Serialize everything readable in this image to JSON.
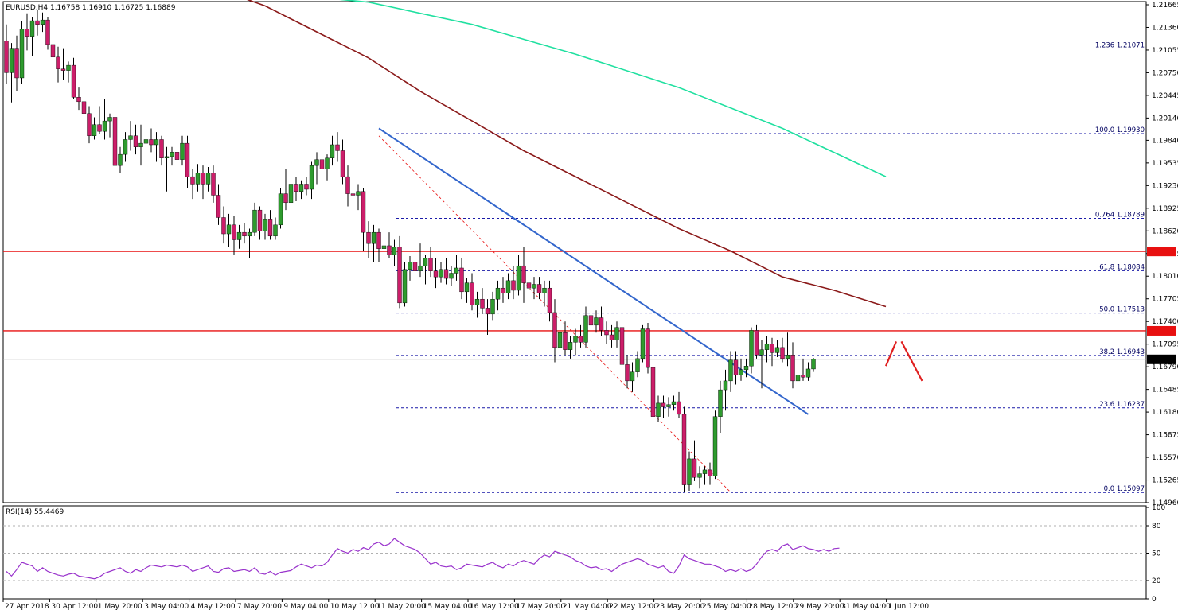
{
  "header": {
    "symbol_info": "EURUSD,H4  1.16758 1.16910 1.16725 1.16889",
    "rsi_info": "RSI(14) 55.4469"
  },
  "price_axis": {
    "labels": [
      "1.21665",
      "1.21360",
      "1.21055",
      "1.20750",
      "1.20445",
      "1.20140",
      "1.19840",
      "1.19535",
      "1.19230",
      "1.18925",
      "1.18620",
      "1.18315",
      "1.18010",
      "1.17705",
      "1.17400",
      "1.17095",
      "1.16790",
      "1.16485",
      "1.16180",
      "1.15875",
      "1.15570",
      "1.15265",
      "1.14960"
    ],
    "current_price": "1.16889",
    "levels": {
      "upper_resistance": "1.18343",
      "lower_resistance": "1.17274"
    }
  },
  "rsi_axis": {
    "labels": [
      "100",
      "80",
      "50",
      "20",
      "0"
    ]
  },
  "time_axis": {
    "labels": [
      "27 Apr 2018",
      "30 Apr 12:00",
      "1 May 20:00",
      "3 May 04:00",
      "4 May 12:00",
      "7 May 20:00",
      "9 May 04:00",
      "10 May 12:00",
      "11 May 20:00",
      "15 May 04:00",
      "16 May 12:00",
      "17 May 20:00",
      "21 May 04:00",
      "22 May 12:00",
      "23 May 20:00",
      "25 May 04:00",
      "28 May 12:00",
      "29 May 20:00",
      "31 May 04:00",
      "1 Jun 12:00"
    ]
  },
  "fib_labels": [
    "1.236 1.21071",
    "100.0 1.19930",
    "0.764 1.18789",
    "61.8 1.18084",
    "50.0 1.17513",
    "38.2 1.16943",
    "23.6 1.16237",
    "0.0 1.15097"
  ],
  "colors": {
    "bull": "#2e9b2e",
    "bear": "#cc1e6a",
    "wick": "#000000",
    "sma_slow": "#20e0a0",
    "sma_mid": "#8b1a1a",
    "trendline": "#3366cc",
    "hline": "#e81010",
    "fib": "#1a1aa8",
    "rsi_line": "#9933cc",
    "projection": "#e02020"
  },
  "chart_data": {
    "type": "candlestick",
    "symbol": "EURUSD",
    "timeframe": "H4",
    "ylim": [
      1.1496,
      1.2166
    ],
    "candles": [
      [
        1.2118,
        1.214,
        1.206,
        1.2075
      ],
      [
        1.2075,
        1.2115,
        1.2035,
        1.2108
      ],
      [
        1.2108,
        1.2125,
        1.205,
        1.2068
      ],
      [
        1.2068,
        1.2145,
        1.206,
        1.2134
      ],
      [
        1.2134,
        1.2155,
        1.2105,
        1.2124
      ],
      [
        1.2124,
        1.215,
        1.2098,
        1.2145
      ],
      [
        1.2145,
        1.216,
        1.2125,
        1.214
      ],
      [
        1.214,
        1.2156,
        1.213,
        1.2146
      ],
      [
        1.2146,
        1.215,
        1.2106,
        1.2113
      ],
      [
        1.2113,
        1.2122,
        1.2078,
        1.2096
      ],
      [
        1.2096,
        1.211,
        1.2062,
        1.208
      ],
      [
        1.208,
        1.2108,
        1.2065,
        1.2078
      ],
      [
        1.2078,
        1.209,
        1.2062,
        1.2085
      ],
      [
        1.2085,
        1.2095,
        1.204,
        1.2042
      ],
      [
        1.2042,
        1.2055,
        1.2025,
        1.2036
      ],
      [
        1.2036,
        1.2045,
        1.2,
        1.202
      ],
      [
        1.202,
        1.203,
        1.198,
        1.199
      ],
      [
        1.199,
        1.2015,
        1.1985,
        1.2005
      ],
      [
        1.2005,
        1.203,
        1.1992,
        1.1996
      ],
      [
        1.1996,
        1.204,
        1.1985,
        1.201
      ],
      [
        1.201,
        1.202,
        1.1988,
        1.2015
      ],
      [
        1.2015,
        1.2025,
        1.1935,
        1.195
      ],
      [
        1.195,
        1.1975,
        1.194,
        1.1965
      ],
      [
        1.1965,
        1.1995,
        1.1955,
        1.1985
      ],
      [
        1.1985,
        1.201,
        1.197,
        1.199
      ],
      [
        1.199,
        1.2005,
        1.1965,
        1.1975
      ],
      [
        1.1975,
        1.2005,
        1.195,
        1.198
      ],
      [
        1.198,
        1.1995,
        1.197,
        1.1985
      ],
      [
        1.1985,
        1.2,
        1.1968,
        1.1978
      ],
      [
        1.1978,
        1.1995,
        1.1955,
        1.1985
      ],
      [
        1.1985,
        1.199,
        1.195,
        1.196
      ],
      [
        1.196,
        1.1975,
        1.1915,
        1.1962
      ],
      [
        1.1962,
        1.1975,
        1.195,
        1.1968
      ],
      [
        1.1968,
        1.1985,
        1.195,
        1.1958
      ],
      [
        1.1958,
        1.199,
        1.195,
        1.198
      ],
      [
        1.198,
        1.199,
        1.192,
        1.1935
      ],
      [
        1.1935,
        1.1945,
        1.1905,
        1.1925
      ],
      [
        1.1925,
        1.1952,
        1.1915,
        1.194
      ],
      [
        1.194,
        1.195,
        1.1905,
        1.1925
      ],
      [
        1.1925,
        1.1948,
        1.1915,
        1.194
      ],
      [
        1.194,
        1.195,
        1.19,
        1.191
      ],
      [
        1.191,
        1.1925,
        1.187,
        1.188
      ],
      [
        1.188,
        1.1895,
        1.1845,
        1.1858
      ],
      [
        1.1858,
        1.1885,
        1.184,
        1.187
      ],
      [
        1.187,
        1.1882,
        1.183,
        1.185
      ],
      [
        1.185,
        1.187,
        1.1838,
        1.186
      ],
      [
        1.186,
        1.1872,
        1.1845,
        1.1855
      ],
      [
        1.1855,
        1.1865,
        1.1825,
        1.186
      ],
      [
        1.186,
        1.19,
        1.1855,
        1.189
      ],
      [
        1.189,
        1.1895,
        1.185,
        1.1862
      ],
      [
        1.1862,
        1.1885,
        1.185,
        1.1878
      ],
      [
        1.1878,
        1.189,
        1.185,
        1.1855
      ],
      [
        1.1855,
        1.188,
        1.185,
        1.187
      ],
      [
        1.187,
        1.192,
        1.1865,
        1.1912
      ],
      [
        1.1912,
        1.1945,
        1.189,
        1.19
      ],
      [
        1.19,
        1.193,
        1.1892,
        1.1925
      ],
      [
        1.1925,
        1.1935,
        1.1902,
        1.1915
      ],
      [
        1.1915,
        1.193,
        1.1905,
        1.1925
      ],
      [
        1.1925,
        1.1935,
        1.191,
        1.1918
      ],
      [
        1.1918,
        1.1955,
        1.1905,
        1.195
      ],
      [
        1.195,
        1.1968,
        1.1925,
        1.1958
      ],
      [
        1.1958,
        1.1972,
        1.1938,
        1.1945
      ],
      [
        1.1945,
        1.1965,
        1.193,
        1.196
      ],
      [
        1.196,
        1.199,
        1.195,
        1.1978
      ],
      [
        1.1978,
        1.1995,
        1.1955,
        1.197
      ],
      [
        1.197,
        1.1985,
        1.1925,
        1.1935
      ],
      [
        1.1935,
        1.195,
        1.1895,
        1.1912
      ],
      [
        1.1912,
        1.1925,
        1.189,
        1.191
      ],
      [
        1.191,
        1.1925,
        1.189,
        1.1915
      ],
      [
        1.1915,
        1.192,
        1.1835,
        1.186
      ],
      [
        1.186,
        1.1875,
        1.1825,
        1.1845
      ],
      [
        1.1845,
        1.187,
        1.182,
        1.186
      ],
      [
        1.186,
        1.1865,
        1.182,
        1.1838
      ],
      [
        1.1838,
        1.185,
        1.1815,
        1.1842
      ],
      [
        1.1842,
        1.186,
        1.1825,
        1.183
      ],
      [
        1.183,
        1.185,
        1.1815,
        1.184
      ],
      [
        1.184,
        1.1855,
        1.1758,
        1.1765
      ],
      [
        1.1765,
        1.182,
        1.176,
        1.181
      ],
      [
        1.181,
        1.1828,
        1.1795,
        1.182
      ],
      [
        1.182,
        1.1835,
        1.1795,
        1.1808
      ],
      [
        1.1808,
        1.1845,
        1.18,
        1.1815
      ],
      [
        1.1815,
        1.183,
        1.179,
        1.1825
      ],
      [
        1.1825,
        1.184,
        1.18,
        1.1808
      ],
      [
        1.1808,
        1.1825,
        1.1785,
        1.18
      ],
      [
        1.18,
        1.182,
        1.1792,
        1.181
      ],
      [
        1.181,
        1.1825,
        1.179,
        1.1798
      ],
      [
        1.1798,
        1.1815,
        1.1788,
        1.1805
      ],
      [
        1.1805,
        1.183,
        1.1795,
        1.1812
      ],
      [
        1.1812,
        1.1825,
        1.177,
        1.178
      ],
      [
        1.178,
        1.1798,
        1.1765,
        1.1792
      ],
      [
        1.1792,
        1.1805,
        1.1755,
        1.1762
      ],
      [
        1.1762,
        1.178,
        1.1745,
        1.177
      ],
      [
        1.177,
        1.1785,
        1.175,
        1.1758
      ],
      [
        1.1758,
        1.177,
        1.1722,
        1.175
      ],
      [
        1.175,
        1.178,
        1.1742,
        1.177
      ],
      [
        1.177,
        1.1795,
        1.1755,
        1.1785
      ],
      [
        1.1785,
        1.18,
        1.1765,
        1.1778
      ],
      [
        1.1778,
        1.1805,
        1.177,
        1.1795
      ],
      [
        1.1795,
        1.1815,
        1.177,
        1.1782
      ],
      [
        1.1782,
        1.183,
        1.1775,
        1.1815
      ],
      [
        1.1815,
        1.184,
        1.1765,
        1.1792
      ],
      [
        1.1792,
        1.1805,
        1.1775,
        1.1785
      ],
      [
        1.1785,
        1.18,
        1.177,
        1.179
      ],
      [
        1.179,
        1.18,
        1.177,
        1.1778
      ],
      [
        1.1778,
        1.1795,
        1.176,
        1.1785
      ],
      [
        1.1785,
        1.1795,
        1.174,
        1.1752
      ],
      [
        1.1752,
        1.177,
        1.1685,
        1.1705
      ],
      [
        1.1705,
        1.1735,
        1.169,
        1.1725
      ],
      [
        1.1725,
        1.174,
        1.1695,
        1.1702
      ],
      [
        1.1702,
        1.172,
        1.169,
        1.1712
      ],
      [
        1.1712,
        1.173,
        1.1695,
        1.172
      ],
      [
        1.172,
        1.1735,
        1.1705,
        1.1712
      ],
      [
        1.1712,
        1.176,
        1.1705,
        1.1748
      ],
      [
        1.1748,
        1.1765,
        1.172,
        1.1735
      ],
      [
        1.1735,
        1.1755,
        1.1725,
        1.1745
      ],
      [
        1.1745,
        1.176,
        1.172,
        1.1728
      ],
      [
        1.1728,
        1.174,
        1.171,
        1.1722
      ],
      [
        1.1722,
        1.1735,
        1.1705,
        1.1715
      ],
      [
        1.1715,
        1.174,
        1.1705,
        1.1732
      ],
      [
        1.1732,
        1.1745,
        1.1675,
        1.1682
      ],
      [
        1.1682,
        1.1695,
        1.165,
        1.166
      ],
      [
        1.166,
        1.1685,
        1.1645,
        1.1672
      ],
      [
        1.1672,
        1.17,
        1.1665,
        1.169
      ],
      [
        1.169,
        1.1735,
        1.1685,
        1.173
      ],
      [
        1.173,
        1.1738,
        1.167,
        1.1678
      ],
      [
        1.1678,
        1.1695,
        1.1605,
        1.1612
      ],
      [
        1.1612,
        1.164,
        1.1605,
        1.163
      ],
      [
        1.163,
        1.164,
        1.161,
        1.1625
      ],
      [
        1.1625,
        1.1638,
        1.1612,
        1.1628
      ],
      [
        1.1628,
        1.164,
        1.162,
        1.1632
      ],
      [
        1.1632,
        1.1645,
        1.161,
        1.1615
      ],
      [
        1.1615,
        1.1625,
        1.151,
        1.152
      ],
      [
        1.152,
        1.1565,
        1.1512,
        1.1555
      ],
      [
        1.1555,
        1.158,
        1.1525,
        1.153
      ],
      [
        1.153,
        1.1545,
        1.1515,
        1.1535
      ],
      [
        1.1535,
        1.1545,
        1.152,
        1.154
      ],
      [
        1.154,
        1.155,
        1.152,
        1.1532
      ],
      [
        1.1532,
        1.162,
        1.1528,
        1.1612
      ],
      [
        1.1612,
        1.166,
        1.159,
        1.1648
      ],
      [
        1.1648,
        1.1675,
        1.162,
        1.166
      ],
      [
        1.166,
        1.17,
        1.1645,
        1.1688
      ],
      [
        1.1688,
        1.17,
        1.1655,
        1.1668
      ],
      [
        1.1668,
        1.169,
        1.166,
        1.1675
      ],
      [
        1.1675,
        1.169,
        1.1665,
        1.168
      ],
      [
        1.168,
        1.1732,
        1.167,
        1.1728
      ],
      [
        1.1728,
        1.1735,
        1.169,
        1.1695
      ],
      [
        1.1695,
        1.1715,
        1.165,
        1.1702
      ],
      [
        1.1702,
        1.172,
        1.1685,
        1.171
      ],
      [
        1.171,
        1.1718,
        1.168,
        1.1698
      ],
      [
        1.1698,
        1.1715,
        1.1692,
        1.1705
      ],
      [
        1.1705,
        1.1718,
        1.1685,
        1.169
      ],
      [
        1.169,
        1.1725,
        1.168,
        1.1695
      ],
      [
        1.1695,
        1.1712,
        1.165,
        1.166
      ],
      [
        1.166,
        1.168,
        1.162,
        1.1668
      ],
      [
        1.1668,
        1.169,
        1.166,
        1.1665
      ],
      [
        1.1665,
        1.1685,
        1.166,
        1.1676
      ],
      [
        1.1676,
        1.1691,
        1.1672,
        1.1689
      ]
    ],
    "moving_averages": [
      {
        "points": [
          [
            0,
            1.2265
          ],
          [
            55,
            1.218
          ],
          [
            70,
            1.217
          ],
          [
            90,
            1.214
          ],
          [
            110,
            1.21
          ],
          [
            130,
            1.2055
          ],
          [
            150,
            1.2
          ],
          [
            170,
            1.1935
          ]
        ]
      },
      {
        "points": [
          [
            0,
            1.229
          ],
          [
            50,
            1.2165
          ],
          [
            60,
            1.213
          ],
          [
            70,
            1.2095
          ],
          [
            80,
            1.205
          ],
          [
            90,
            1.201
          ],
          [
            100,
            1.197
          ],
          [
            110,
            1.1935
          ],
          [
            120,
            1.19
          ],
          [
            130,
            1.1865
          ],
          [
            140,
            1.1835
          ],
          [
            150,
            1.18
          ],
          [
            160,
            1.1782
          ],
          [
            170,
            1.176
          ]
        ]
      }
    ],
    "trendline": [
      [
        72,
        1.2
      ],
      [
        155,
        1.1615
      ]
    ],
    "swing_line": [
      [
        72,
        1.199
      ],
      [
        140,
        1.151
      ]
    ],
    "horizontal_levels": [
      1.18343,
      1.17274
    ],
    "fibonacci": [
      {
        "ratio": "1.236",
        "price": 1.21071
      },
      {
        "ratio": "100.0",
        "price": 1.1993
      },
      {
        "ratio": "0.764",
        "price": 1.18789
      },
      {
        "ratio": "61.8",
        "price": 1.18084
      },
      {
        "ratio": "50.0",
        "price": 1.17513
      },
      {
        "ratio": "38.2",
        "price": 1.16943
      },
      {
        "ratio": "23.6",
        "price": 1.16237
      },
      {
        "ratio": "0.0",
        "price": 1.15097
      }
    ],
    "projection": [
      [
        [
          170,
          1.168
        ],
        [
          172,
          1.1713
        ]
      ],
      [
        [
          173,
          1.1713
        ],
        [
          177,
          1.166
        ]
      ]
    ],
    "rsi": {
      "period": 14,
      "last": 55.4469,
      "levels": [
        80,
        50,
        20
      ],
      "ylim": [
        0,
        100
      ],
      "values": [
        30,
        25,
        32,
        40,
        38,
        36,
        30,
        34,
        30,
        28,
        26,
        25,
        27,
        28,
        25,
        24,
        23,
        22,
        24,
        28,
        30,
        32,
        34,
        30,
        28,
        32,
        30,
        34,
        37,
        36,
        35,
        37,
        36,
        35,
        37,
        35,
        30,
        32,
        34,
        36,
        30,
        29,
        33,
        34,
        30,
        31,
        32,
        30,
        34,
        28,
        27,
        30,
        26,
        29,
        30,
        31,
        35,
        38,
        36,
        34,
        37,
        36,
        40,
        48,
        55,
        52,
        50,
        54,
        52,
        56,
        54,
        60,
        62,
        58,
        60,
        66,
        62,
        58,
        56,
        54,
        50,
        44,
        38,
        40,
        36,
        35,
        36,
        32,
        34,
        38,
        37,
        36,
        35,
        38,
        40,
        36,
        34,
        38,
        36,
        40,
        42,
        40,
        38,
        44,
        48,
        46,
        52,
        50,
        48,
        46,
        42,
        40,
        36,
        34,
        35,
        32,
        33,
        30,
        34,
        38,
        40,
        42,
        44,
        42,
        38,
        36,
        34,
        36,
        30,
        28,
        36,
        48,
        44,
        42,
        40,
        38,
        38,
        36,
        34,
        30,
        32,
        30,
        33,
        30,
        32,
        38,
        46,
        52,
        54,
        52,
        58,
        60,
        54,
        56,
        58,
        55,
        54,
        52,
        54,
        52,
        55,
        55.4469
      ]
    }
  }
}
